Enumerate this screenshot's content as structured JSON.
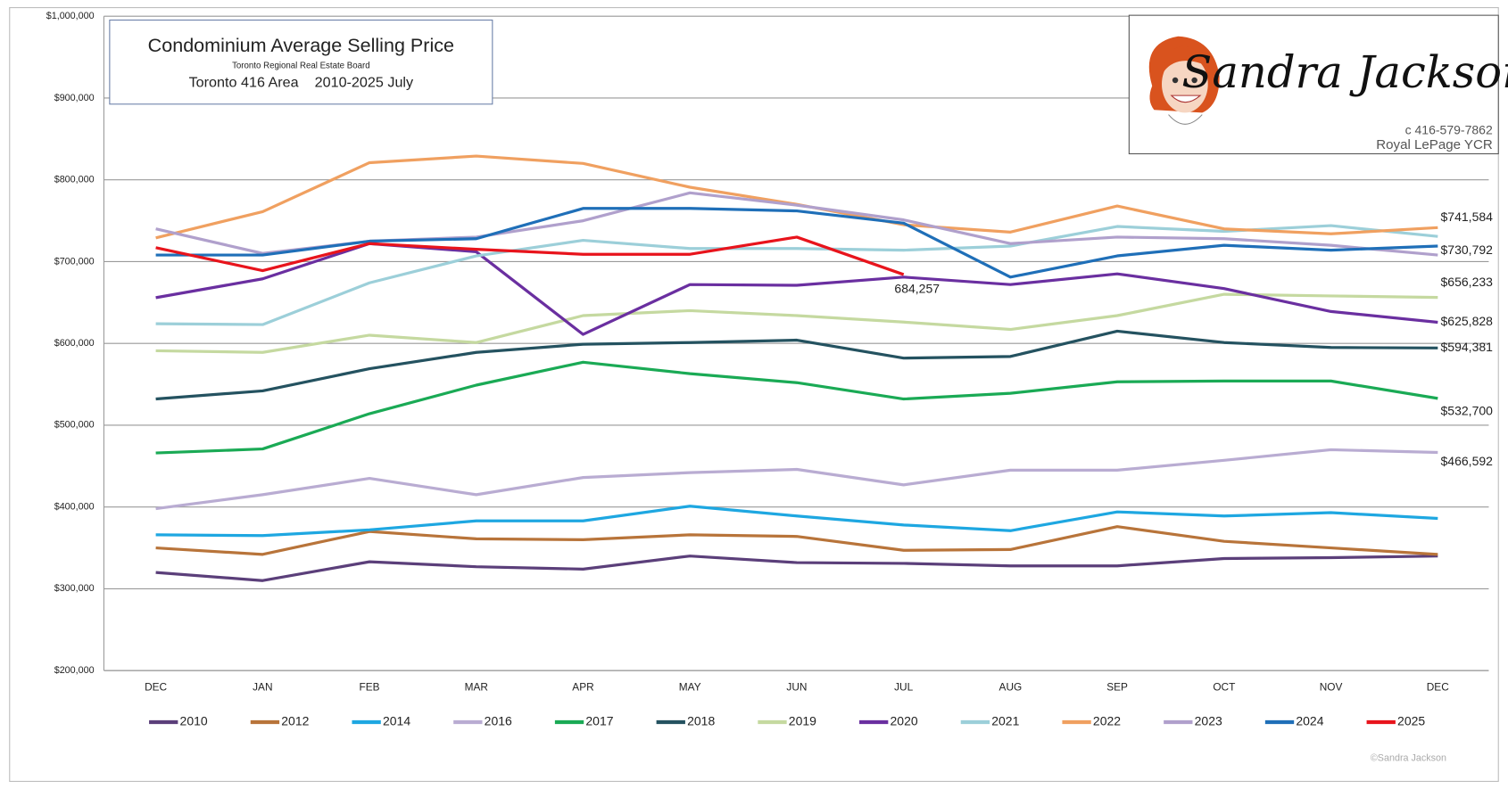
{
  "chart_data": {
    "type": "line",
    "title": "Condominium Average Selling Price",
    "source": "Toronto Regional Real Estate Board",
    "subtitle": "Toronto 416 Area    2010-2025 July",
    "logo": {
      "name": "Sandra Jackson",
      "phone": "c 416-579-7862",
      "brokerage": "Royal LePage YCR"
    },
    "copyright": "©Sandra Jackson",
    "categories": [
      "DEC",
      "JAN",
      "FEB",
      "MAR",
      "APR",
      "MAY",
      "JUN",
      "JUL",
      "AUG",
      "SEP",
      "OCT",
      "NOV",
      "DEC"
    ],
    "ylim": [
      200000,
      1000000
    ],
    "yticks": [
      {
        "value": 200000,
        "label": "$200,000"
      },
      {
        "value": 300000,
        "label": "$300,000"
      },
      {
        "value": 400000,
        "label": "$400,000"
      },
      {
        "value": 500000,
        "label": "$500,000"
      },
      {
        "value": 600000,
        "label": "$600,000"
      },
      {
        "value": 700000,
        "label": "$700,000"
      },
      {
        "value": 800000,
        "label": "$800,000"
      },
      {
        "value": 900000,
        "label": "$900,000"
      },
      {
        "value": 1000000,
        "label": "$1,000,000"
      }
    ],
    "grid": true,
    "legend": "bottom",
    "series": [
      {
        "name": "2010",
        "color": "#5b3f7a",
        "values": [
          320000,
          310000,
          333000,
          327000,
          324000,
          340000,
          332000,
          331000,
          328000,
          328000,
          337000,
          338000,
          340000
        ]
      },
      {
        "name": "2012",
        "color": "#b8743a",
        "values": [
          350000,
          342000,
          370000,
          361000,
          360000,
          366000,
          364000,
          347000,
          348000,
          376000,
          358000,
          350000,
          342000
        ]
      },
      {
        "name": "2014",
        "color": "#1ea7e1",
        "values": [
          366000,
          365000,
          372000,
          383000,
          383000,
          401000,
          389000,
          378000,
          371000,
          394000,
          389000,
          393000,
          386000
        ]
      },
      {
        "name": "2016",
        "color": "#b9acd2",
        "values": [
          398000,
          415000,
          435000,
          415000,
          436000,
          442000,
          446000,
          427000,
          445000,
          445000,
          457000,
          470000,
          466592
        ],
        "value_labels": [
          null,
          null,
          null,
          null,
          null,
          null,
          null,
          null,
          null,
          null,
          null,
          null,
          "$466,592"
        ]
      },
      {
        "name": "2017",
        "color": "#1aaa55",
        "values": [
          466000,
          471000,
          514000,
          549000,
          577000,
          563000,
          552000,
          532000,
          539000,
          553000,
          554000,
          554000,
          532700
        ],
        "value_labels": [
          null,
          null,
          null,
          null,
          null,
          null,
          null,
          null,
          null,
          null,
          null,
          null,
          "$532,700"
        ]
      },
      {
        "name": "2018",
        "color": "#245260",
        "values": [
          532000,
          542000,
          569000,
          589000,
          599000,
          601000,
          604000,
          582000,
          584000,
          615000,
          601000,
          595000,
          594381
        ],
        "value_labels": [
          null,
          null,
          null,
          null,
          null,
          null,
          null,
          null,
          null,
          null,
          null,
          null,
          "$594,381"
        ]
      },
      {
        "name": "2019",
        "color": "#c5d9a0",
        "values": [
          591000,
          589000,
          610000,
          601000,
          634000,
          640000,
          634000,
          626000,
          617000,
          634000,
          660000,
          658000,
          656233
        ],
        "value_labels": [
          null,
          null,
          null,
          null,
          null,
          null,
          null,
          null,
          null,
          null,
          null,
          null,
          "$656,233"
        ]
      },
      {
        "name": "2020",
        "color": "#6a2fa0",
        "values": [
          656000,
          679000,
          722000,
          712000,
          611000,
          672000,
          671000,
          681000,
          672000,
          685000,
          667000,
          639000,
          625828
        ],
        "value_labels": [
          null,
          null,
          null,
          null,
          null,
          null,
          null,
          null,
          null,
          null,
          null,
          null,
          "$625,828"
        ]
      },
      {
        "name": "2021",
        "color": "#9ccfd9",
        "values": [
          624000,
          623000,
          674000,
          707000,
          726000,
          716000,
          716000,
          714000,
          719000,
          743000,
          737000,
          744000,
          730792
        ],
        "value_labels": [
          null,
          null,
          null,
          null,
          null,
          null,
          null,
          null,
          null,
          null,
          null,
          null,
          "$730,792"
        ]
      },
      {
        "name": "2022",
        "color": "#f0a060",
        "values": [
          729000,
          761000,
          821000,
          829000,
          820000,
          791000,
          770000,
          745000,
          736000,
          768000,
          740000,
          734000,
          741584
        ],
        "value_labels": [
          null,
          null,
          null,
          null,
          null,
          null,
          null,
          null,
          null,
          null,
          null,
          null,
          "$741,584"
        ]
      },
      {
        "name": "2023",
        "color": "#b0a0cc",
        "values": [
          740000,
          710000,
          725000,
          730000,
          750000,
          784000,
          769000,
          751000,
          722000,
          730000,
          728000,
          720000,
          708000
        ]
      },
      {
        "name": "2024",
        "color": "#1f6fb8",
        "values": [
          708000,
          708000,
          725000,
          728000,
          765000,
          765000,
          762000,
          747000,
          681000,
          707000,
          720000,
          714000,
          719000
        ]
      },
      {
        "name": "2025",
        "color": "#e8141c",
        "values": [
          717000,
          689000,
          722000,
          715000,
          709000,
          709000,
          730000,
          684257,
          null,
          null,
          null,
          null,
          null
        ],
        "value_labels": [
          null,
          null,
          null,
          null,
          null,
          null,
          null,
          "684,257",
          null,
          null,
          null,
          null,
          null
        ]
      }
    ]
  }
}
